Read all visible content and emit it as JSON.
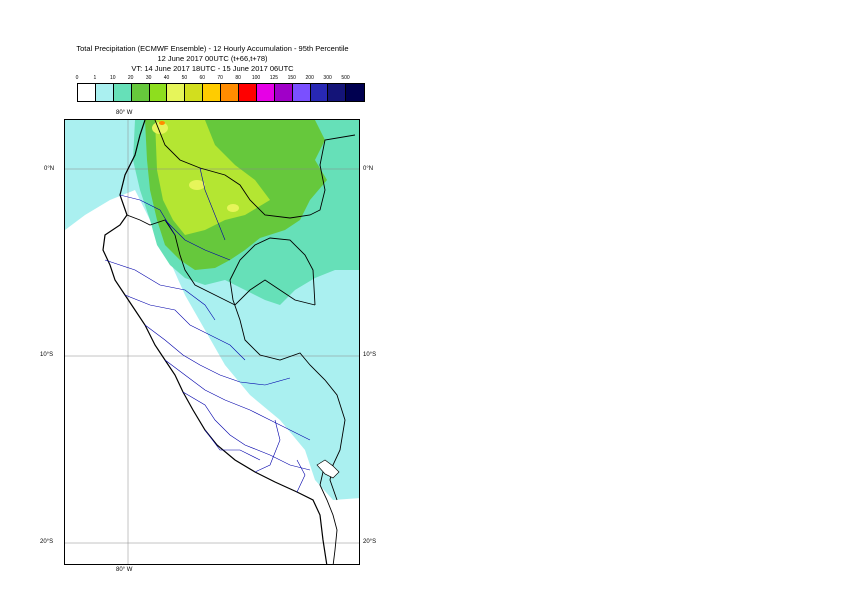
{
  "title": {
    "line1": "Total Precipitation (ECMWF Ensemble) - 12 Hourly Accumulation - 95th Percentile",
    "line2": "12 June 2017 00UTC (t+66,t+78)",
    "line3": "VT: 14 June 2017 18UTC - 15 June 2017 06UTC"
  },
  "colorbar": {
    "labels": [
      "0",
      "1",
      "10",
      "20",
      "30",
      "40",
      "50",
      "60",
      "70",
      "80",
      "100",
      "125",
      "150",
      "200",
      "300",
      "500"
    ],
    "colors": [
      "#ffffff",
      "#aaf0f0",
      "#66e0b8",
      "#66c83c",
      "#8ede1e",
      "#e6f55a",
      "#d2de1e",
      "#ffcc00",
      "#ff8c00",
      "#ff0000",
      "#e600e6",
      "#a000c8",
      "#7a50ff",
      "#2828b4",
      "#141478",
      "#000050"
    ]
  },
  "map": {
    "lon_labels": [
      "80° W",
      "80° W"
    ],
    "lat_labels_left": [
      "0°N",
      "10°S",
      "20°S"
    ],
    "lat_labels_right": [
      "0°N",
      "10°S",
      "20°S"
    ],
    "colors": {
      "ocean_light": "#aaf0f0",
      "medium": "#66e0b8",
      "green": "#66c83c",
      "yellowgreen": "#b4e632",
      "yellow": "#e6f55a",
      "border": "#000000",
      "regions": "#0000aa"
    }
  }
}
